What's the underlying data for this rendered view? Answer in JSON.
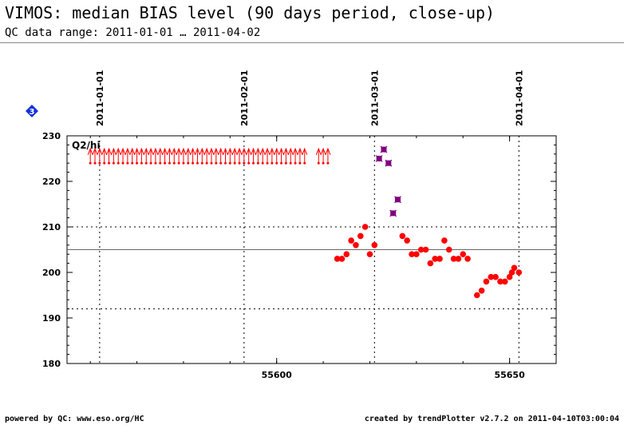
{
  "title": "VIMOS: median BIAS level (90 days period, close-up)",
  "subtitle": "QC data range: 2011-01-01 … 2011-04-02",
  "footer_left": "powered by QC: www.eso.org/HC",
  "footer_right": "created by trendPlotter v2.7.2 on 2011-04-10T03:00:04",
  "badge": "3",
  "colors": {
    "normal": "#ff0000",
    "highlight": "#800080",
    "badge": "#1030e0"
  },
  "chart_data": {
    "type": "scatter",
    "panel_label": "Q2/hi",
    "xlim": [
      55555,
      55660
    ],
    "ylim": [
      180,
      230
    ],
    "y_ticks": [
      180,
      190,
      200,
      210,
      220,
      230
    ],
    "x_ticks": [
      55600,
      55650
    ],
    "grid_lines_y": [
      192,
      210
    ],
    "reference_line_y": 205,
    "date_markers": [
      {
        "label": "2011-01-01",
        "mjd": 55562
      },
      {
        "label": "2011-02-01",
        "mjd": 55593
      },
      {
        "label": "2011-03-01",
        "mjd": 55621
      },
      {
        "label": "2011-04-01",
        "mjd": 55652
      }
    ],
    "out_of_range_mjd": [
      55560,
      55561,
      55562,
      55563,
      55564,
      55565,
      55566,
      55567,
      55568,
      55569,
      55570,
      55571,
      55572,
      55573,
      55574,
      55575,
      55576,
      55577,
      55578,
      55579,
      55580,
      55581,
      55582,
      55583,
      55584,
      55585,
      55586,
      55587,
      55588,
      55589,
      55590,
      55591,
      55592,
      55593,
      55594,
      55595,
      55596,
      55597,
      55598,
      55599,
      55600,
      55601,
      55602,
      55603,
      55604,
      55605,
      55606,
      55609,
      55610,
      55611
    ],
    "series": [
      {
        "x": [
          55613,
          55614,
          55615,
          55616,
          55617,
          55618,
          55619,
          55620,
          55621,
          55627,
          55628,
          55629,
          55630,
          55631,
          55632,
          55633,
          55634,
          55635,
          55636,
          55637,
          55638,
          55639,
          55640,
          55641,
          55643,
          55644,
          55645,
          55646,
          55647,
          55648,
          55649,
          55650,
          55650.5,
          55651,
          55652
        ],
        "y": [
          203,
          203,
          204,
          207,
          206,
          208,
          210,
          204,
          206,
          208,
          207,
          204,
          204,
          205,
          205,
          202,
          203,
          203,
          207,
          205,
          203,
          203,
          204,
          203,
          195,
          196,
          198,
          199,
          199,
          198,
          198,
          199,
          200,
          201,
          200
        ]
      },
      {
        "x": [
          55622,
          55623,
          55624,
          55625,
          55626
        ],
        "y": [
          225,
          227,
          224,
          213,
          216
        ]
      }
    ]
  }
}
